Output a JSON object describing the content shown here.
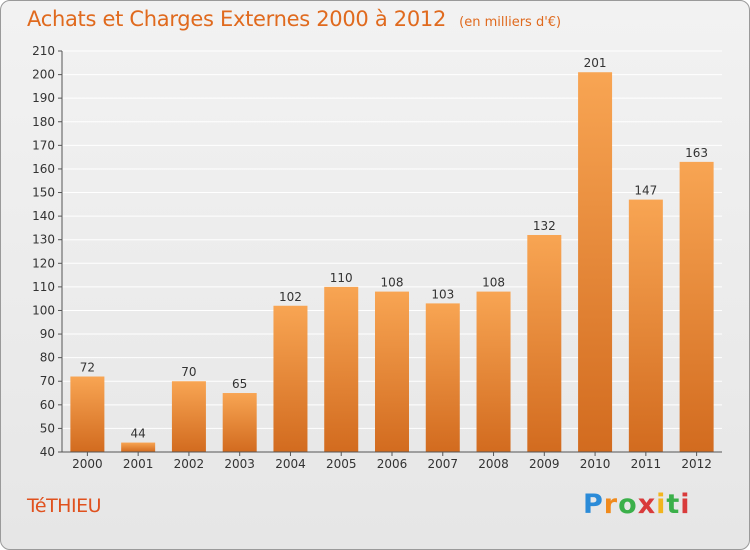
{
  "header": {
    "title": "Achats et Charges Externes 2000 à 2012",
    "subtitle": "(en milliers d'€)"
  },
  "footer": {
    "commune": "TéTHIEU",
    "logo": [
      "P",
      "r",
      "o",
      "x",
      "i",
      "t",
      "i"
    ]
  },
  "colors": {
    "bar_top": "#f8a553",
    "bar_bottom": "#d26b1f",
    "title": "#e06a1e",
    "axis": "#555555",
    "grid": "#ffffff"
  },
  "chart_data": {
    "type": "bar",
    "title": "Achats et Charges Externes 2000 à 2012",
    "subtitle": "(en milliers d'€)",
    "categories": [
      "2000",
      "2001",
      "2002",
      "2003",
      "2004",
      "2005",
      "2006",
      "2007",
      "2008",
      "2009",
      "2010",
      "2011",
      "2012"
    ],
    "values": [
      72,
      44,
      70,
      65,
      102,
      110,
      108,
      103,
      108,
      132,
      201,
      147,
      163
    ],
    "ylim": [
      40,
      210
    ],
    "yticks": [
      40,
      50,
      60,
      70,
      80,
      90,
      100,
      110,
      120,
      130,
      140,
      150,
      160,
      170,
      180,
      190,
      200,
      210
    ],
    "xlabel": "",
    "ylabel": "",
    "grid": true,
    "legend": "none"
  }
}
